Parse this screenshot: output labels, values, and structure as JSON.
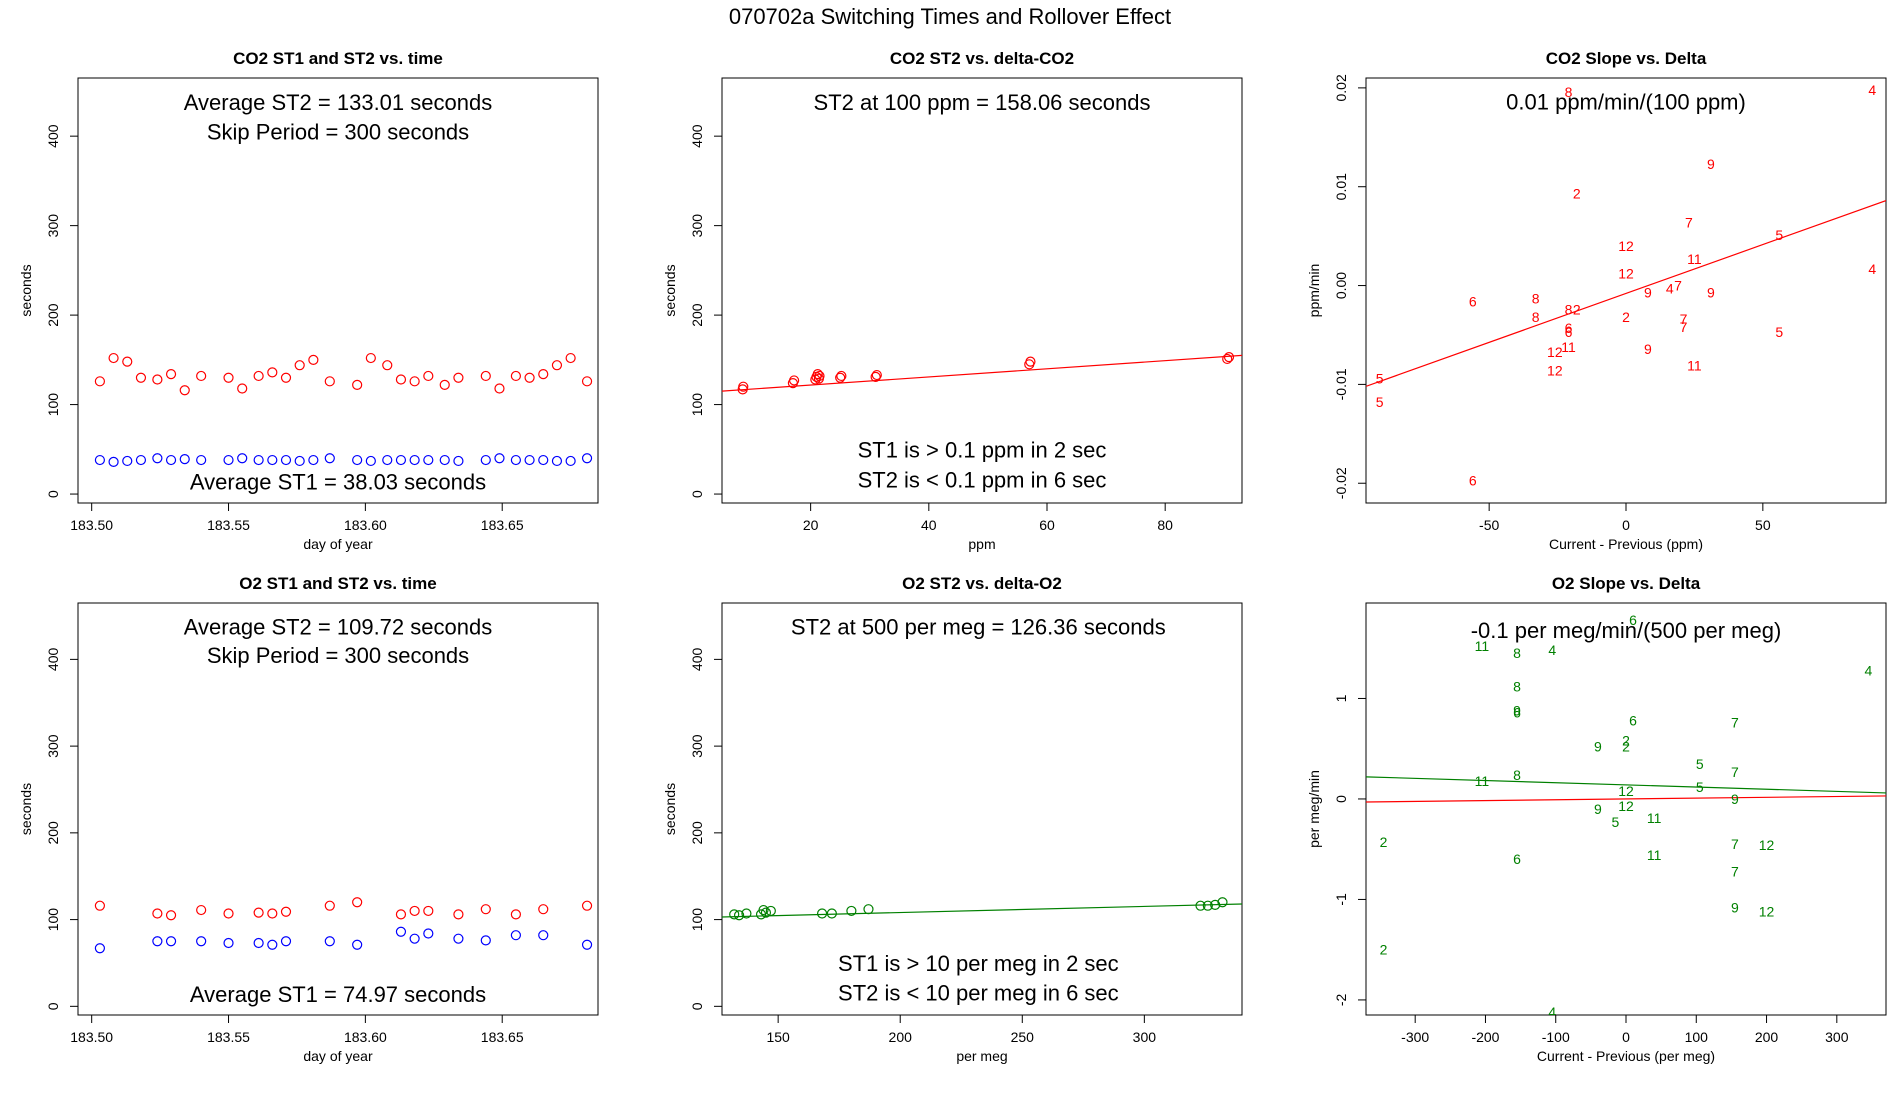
{
  "page_title": "070702a   Switching Times and Rollover Effect",
  "colors": {
    "st1": "#0000ff",
    "st2": "#ff0000",
    "co2": "#ff0000",
    "o2": "#008000",
    "axis": "#000000"
  },
  "chart_data": [
    {
      "id": "co2-time",
      "type": "scatter",
      "title": "CO2 ST1 and ST2 vs. time",
      "xlabel": "day of year",
      "ylabel": "seconds",
      "xlim": [
        183.495,
        183.685
      ],
      "ylim": [
        -10,
        465
      ],
      "xticks": [
        183.5,
        183.55,
        183.6,
        183.65
      ],
      "xtick_labels": [
        "183.50",
        "183.55",
        "183.60",
        "183.65"
      ],
      "yticks": [
        0,
        100,
        200,
        300,
        400
      ],
      "ytick_labels": [
        "0",
        "100",
        "200",
        "300",
        "400"
      ],
      "annotations": [
        {
          "text": "Average ST2 =  133.01  seconds",
          "x": 183.59,
          "y": 438
        },
        {
          "text": "Skip Period =  300  seconds",
          "x": 183.59,
          "y": 405
        },
        {
          "text": "Average ST1 =  38.03  seconds",
          "x": 183.59,
          "y": 14
        }
      ],
      "series": [
        {
          "name": "ST2",
          "color": "#ff0000",
          "marker": "circle",
          "x": [
            183.503,
            183.508,
            183.513,
            183.518,
            183.524,
            183.529,
            183.534,
            183.54,
            183.55,
            183.555,
            183.561,
            183.566,
            183.571,
            183.576,
            183.581,
            183.587,
            183.597,
            183.602,
            183.608,
            183.613,
            183.618,
            183.623,
            183.629,
            183.634,
            183.644,
            183.649,
            183.655,
            183.66,
            183.665,
            183.67,
            183.675,
            183.681
          ],
          "y": [
            126,
            152,
            148,
            130,
            128,
            134,
            116,
            132,
            130,
            118,
            132,
            136,
            130,
            144,
            150,
            126,
            122,
            152,
            144,
            128,
            126,
            132,
            122,
            130,
            132,
            118,
            132,
            130,
            134,
            144,
            152,
            126
          ]
        },
        {
          "name": "ST1",
          "color": "#0000ff",
          "marker": "circle",
          "x": [
            183.503,
            183.508,
            183.513,
            183.518,
            183.524,
            183.529,
            183.534,
            183.54,
            183.55,
            183.555,
            183.561,
            183.566,
            183.571,
            183.576,
            183.581,
            183.587,
            183.597,
            183.602,
            183.608,
            183.613,
            183.618,
            183.623,
            183.629,
            183.634,
            183.644,
            183.649,
            183.655,
            183.66,
            183.665,
            183.67,
            183.675,
            183.681
          ],
          "y": [
            38,
            36,
            37,
            38,
            40,
            38,
            39,
            38,
            38,
            40,
            38,
            38,
            38,
            37,
            38,
            40,
            38,
            37,
            38,
            38,
            38,
            38,
            38,
            37,
            38,
            40,
            38,
            38,
            38,
            37,
            37,
            40
          ]
        }
      ]
    },
    {
      "id": "co2-delta",
      "type": "scatter",
      "title": "CO2 ST2 vs. delta-CO2",
      "xlabel": "ppm",
      "ylabel": "seconds",
      "xlim": [
        5,
        93
      ],
      "ylim": [
        -10,
        465
      ],
      "xticks": [
        20,
        40,
        60,
        80
      ],
      "xtick_labels": [
        "20",
        "40",
        "60",
        "80"
      ],
      "yticks": [
        0,
        100,
        200,
        300,
        400
      ],
      "ytick_labels": [
        "0",
        "100",
        "200",
        "300",
        "400"
      ],
      "annotations": [
        {
          "text": "ST2 at 100 ppm =  158.06  seconds",
          "x": 49,
          "y": 438
        },
        {
          "text": "ST1 is > 0.1 ppm in 2 sec",
          "x": 49,
          "y": 50
        },
        {
          "text": "ST2 is < 0.1 ppm in 6 sec",
          "x": 49,
          "y": 16
        }
      ],
      "series": [
        {
          "name": "ST2",
          "color": "#ff0000",
          "marker": "circle",
          "x": [
            8.5,
            8.6,
            17.0,
            17.2,
            20.8,
            21.0,
            21.2,
            21.4,
            21.5,
            25.0,
            25.2,
            31.0,
            31.2,
            57.0,
            57.2,
            90.5,
            90.8
          ],
          "y": [
            117,
            120,
            124,
            127,
            128,
            131,
            134,
            129,
            132,
            130,
            132,
            131,
            133,
            145,
            148,
            151,
            153
          ]
        }
      ],
      "lines": [
        {
          "color": "#ff0000",
          "x": [
            5,
            93
          ],
          "y": [
            115,
            155
          ]
        }
      ]
    },
    {
      "id": "co2-slope",
      "type": "scatter",
      "title": "CO2 Slope vs. Delta",
      "xlabel": "Current - Previous (ppm)",
      "ylabel": "ppm/min",
      "xlim": [
        -95,
        95
      ],
      "ylim": [
        -0.022,
        0.021
      ],
      "xticks": [
        -50,
        0,
        50
      ],
      "xtick_labels": [
        "-50",
        "0",
        "50"
      ],
      "yticks": [
        -0.02,
        -0.01,
        0.0,
        0.01,
        0.02
      ],
      "ytick_labels": [
        "-0.02",
        "-0.01",
        "0.00",
        "0.01",
        "0.02"
      ],
      "annotations": [
        {
          "text": "0.01  ppm/min/(100 ppm)",
          "x": 0,
          "y": 0.0186
        }
      ],
      "series": [
        {
          "name": "points",
          "color": "#ff0000",
          "marker": "label",
          "x": [
            -21,
            90,
            31,
            -18,
            23,
            56,
            0,
            25,
            0,
            8,
            16,
            19,
            31,
            90,
            -56,
            -33,
            -18,
            -21,
            -33,
            -21,
            -21,
            0,
            21,
            21,
            -26,
            -21,
            8,
            -26,
            -90,
            -90,
            56,
            25,
            -56
          ],
          "y": [
            0.0196,
            0.0198,
            0.0123,
            0.0093,
            0.0064,
            0.0051,
            0.004,
            0.0027,
            0.0012,
            -0.0007,
            -0.0003,
            0.0,
            -0.0007,
            0.0017,
            -0.0016,
            -0.0013,
            -0.0024,
            -0.0024,
            -0.0032,
            -0.0043,
            -0.0047,
            -0.0032,
            -0.0034,
            -0.0042,
            -0.0067,
            -0.0062,
            -0.0064,
            -0.0086,
            -0.0094,
            -0.0118,
            -0.0047,
            -0.0081,
            -0.0197
          ],
          "labels": [
            "8",
            "4",
            "9",
            "2",
            "7",
            "5",
            "12",
            "11",
            "12",
            "9",
            "4",
            "7",
            "9",
            "4",
            "6",
            "8",
            "2",
            "8",
            "8",
            "6",
            "6",
            "2",
            "7",
            "7",
            "12",
            "11",
            "9",
            "12",
            "5",
            "5",
            "5",
            "11",
            "6"
          ]
        }
      ],
      "lines": [
        {
          "color": "#ff0000",
          "x": [
            -95,
            95
          ],
          "y": [
            -0.0102,
            0.0086
          ]
        }
      ]
    },
    {
      "id": "o2-time",
      "type": "scatter",
      "title": "O2 ST1 and ST2 vs. time",
      "xlabel": "day of year",
      "ylabel": "seconds",
      "xlim": [
        183.495,
        183.685
      ],
      "ylim": [
        -10,
        465
      ],
      "xticks": [
        183.5,
        183.55,
        183.6,
        183.65
      ],
      "xtick_labels": [
        "183.50",
        "183.55",
        "183.60",
        "183.65"
      ],
      "yticks": [
        0,
        100,
        200,
        300,
        400
      ],
      "ytick_labels": [
        "0",
        "100",
        "200",
        "300",
        "400"
      ],
      "annotations": [
        {
          "text": "Average ST2 =  109.72  seconds",
          "x": 183.59,
          "y": 438
        },
        {
          "text": "Skip Period =  300  seconds",
          "x": 183.59,
          "y": 405
        },
        {
          "text": "Average ST1 =  74.97  seconds",
          "x": 183.59,
          "y": 14
        }
      ],
      "series": [
        {
          "name": "ST2",
          "color": "#ff0000",
          "marker": "circle",
          "x": [
            183.503,
            183.524,
            183.529,
            183.54,
            183.55,
            183.561,
            183.566,
            183.571,
            183.587,
            183.597,
            183.613,
            183.618,
            183.623,
            183.634,
            183.644,
            183.655,
            183.665,
            183.681
          ],
          "y": [
            116,
            107,
            105,
            111,
            107,
            108,
            107,
            109,
            116,
            120,
            106,
            110,
            110,
            106,
            112,
            106,
            112,
            116
          ]
        },
        {
          "name": "ST1",
          "color": "#0000ff",
          "marker": "circle",
          "x": [
            183.503,
            183.524,
            183.529,
            183.54,
            183.55,
            183.561,
            183.566,
            183.571,
            183.587,
            183.597,
            183.613,
            183.618,
            183.623,
            183.634,
            183.644,
            183.655,
            183.665,
            183.681
          ],
          "y": [
            67,
            75,
            75,
            75,
            73,
            73,
            71,
            75,
            75,
            71,
            86,
            78,
            84,
            78,
            76,
            82,
            82,
            71
          ]
        }
      ]
    },
    {
      "id": "o2-delta",
      "type": "scatter",
      "title": "O2 ST2 vs. delta-O2",
      "xlabel": "per meg",
      "ylabel": "seconds",
      "xlim": [
        127,
        340
      ],
      "ylim": [
        -10,
        465
      ],
      "xticks": [
        150,
        200,
        250,
        300
      ],
      "xtick_labels": [
        "150",
        "200",
        "250",
        "300"
      ],
      "yticks": [
        0,
        100,
        200,
        300,
        400
      ],
      "ytick_labels": [
        "0",
        "100",
        "200",
        "300",
        "400"
      ],
      "annotations": [
        {
          "text": "ST2 at 500 per meg =  126.36  seconds",
          "x": 232,
          "y": 438
        },
        {
          "text": "ST1 is > 10 per meg in 2 sec",
          "x": 232,
          "y": 50
        },
        {
          "text": "ST2 is < 10 per meg in 6 sec",
          "x": 232,
          "y": 16
        }
      ],
      "series": [
        {
          "name": "ST2",
          "color": "#008000",
          "marker": "circle",
          "x": [
            132,
            134,
            137,
            143,
            144,
            145,
            147,
            168,
            172,
            180,
            187,
            323,
            326,
            329,
            332
          ],
          "y": [
            106,
            105,
            107,
            106,
            111,
            108,
            110,
            107,
            107,
            110,
            112,
            116,
            116,
            117,
            120
          ]
        }
      ],
      "lines": [
        {
          "color": "#008000",
          "x": [
            127,
            340
          ],
          "y": [
            103,
            118
          ]
        }
      ]
    },
    {
      "id": "o2-slope",
      "type": "scatter",
      "title": "O2 Slope vs. Delta",
      "xlabel": "Current - Previous (per meg)",
      "ylabel": "per meg/min",
      "xlim": [
        -370,
        370
      ],
      "ylim": [
        -2.15,
        1.95
      ],
      "xticks": [
        -300,
        -200,
        -100,
        0,
        100,
        200,
        300
      ],
      "xtick_labels": [
        "-300",
        "-200",
        "-100",
        "0",
        "100",
        "200",
        "300"
      ],
      "yticks": [
        -2,
        -1,
        0,
        1
      ],
      "ytick_labels": [
        "-2",
        "-1",
        "0",
        "1"
      ],
      "annotations": [
        {
          "text": "-0.1  per meg/min/(500 per meg)",
          "x": 0,
          "y": 1.68
        }
      ],
      "series": [
        {
          "name": "points",
          "color": "#008000",
          "marker": "label",
          "x": [
            10,
            -205,
            -155,
            -105,
            345,
            -155,
            -155,
            -155,
            10,
            155,
            0,
            -40,
            0,
            105,
            155,
            -155,
            -205,
            0,
            155,
            105,
            0,
            -40,
            40,
            -15,
            -345,
            40,
            155,
            200,
            -155,
            155,
            155,
            200,
            -345,
            -105
          ],
          "y": [
            1.78,
            1.52,
            1.45,
            1.48,
            1.28,
            1.12,
            0.88,
            0.86,
            0.78,
            0.76,
            0.58,
            0.52,
            0.52,
            0.35,
            0.27,
            0.24,
            0.18,
            0.08,
            0.0,
            0.12,
            -0.07,
            -0.1,
            -0.19,
            -0.23,
            -0.43,
            -0.56,
            -0.45,
            -0.46,
            -0.6,
            -0.72,
            -1.08,
            -1.12,
            -1.5,
            -2.12
          ],
          "labels": [
            "6",
            "11",
            "8",
            "4",
            "4",
            "8",
            "9",
            "6",
            "6",
            "7",
            "2",
            "9",
            "2",
            "5",
            "7",
            "8",
            "11",
            "12",
            "9",
            "5",
            "12",
            "9",
            "11",
            "5",
            "2",
            "11",
            "7",
            "12",
            "6",
            "7",
            "9",
            "12",
            "2",
            "4"
          ]
        }
      ],
      "lines": [
        {
          "color": "#008000",
          "x": [
            -370,
            370
          ],
          "y": [
            0.22,
            0.06
          ]
        },
        {
          "color": "#ff0000",
          "x": [
            -370,
            370
          ],
          "y": [
            -0.03,
            0.03
          ]
        }
      ]
    }
  ]
}
